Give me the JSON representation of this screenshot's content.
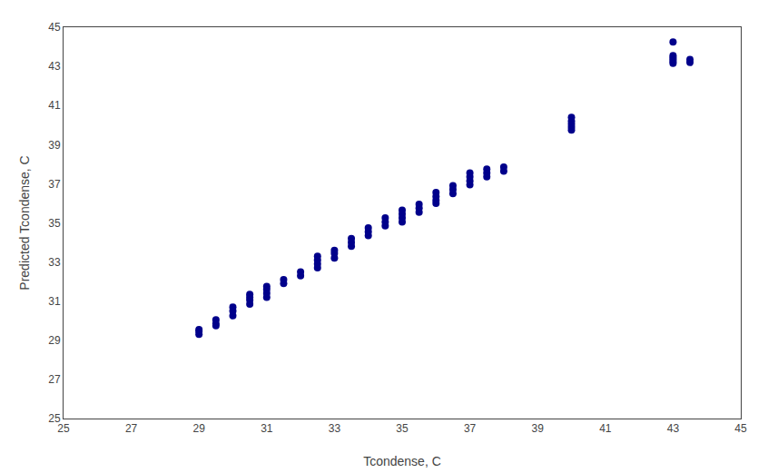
{
  "chart_data": {
    "type": "scatter",
    "xlabel": "Tcondense, C",
    "ylabel": "Predicted Tcondense, C",
    "x": [
      29.0,
      29.0,
      29.0,
      29.5,
      29.5,
      29.5,
      30.0,
      30.0,
      30.0,
      30.5,
      30.5,
      30.5,
      30.5,
      31.0,
      31.0,
      31.0,
      31.0,
      31.5,
      31.5,
      32.0,
      32.0,
      32.5,
      32.5,
      32.5,
      32.5,
      33.0,
      33.0,
      33.0,
      33.5,
      33.5,
      33.5,
      34.0,
      34.0,
      34.0,
      34.5,
      34.5,
      34.5,
      35.0,
      35.0,
      35.0,
      35.0,
      35.5,
      35.5,
      35.5,
      36.0,
      36.0,
      36.0,
      36.0,
      36.5,
      36.5,
      36.5,
      37.0,
      37.0,
      37.0,
      37.0,
      37.5,
      37.5,
      37.5,
      38.0,
      38.0,
      40.0,
      40.0,
      40.0,
      40.0,
      40.0,
      43.0,
      43.0,
      43.0,
      43.0,
      43.0,
      43.0,
      43.5,
      43.5
    ],
    "values": [
      29.3,
      29.45,
      29.55,
      29.75,
      29.85,
      30.05,
      30.25,
      30.5,
      30.7,
      30.85,
      31.05,
      31.2,
      31.35,
      31.2,
      31.4,
      31.6,
      31.75,
      31.9,
      32.1,
      32.3,
      32.5,
      32.7,
      32.9,
      33.1,
      33.3,
      33.2,
      33.45,
      33.6,
      33.8,
      34.0,
      34.2,
      34.35,
      34.55,
      34.75,
      34.85,
      35.05,
      35.25,
      35.05,
      35.25,
      35.45,
      35.65,
      35.55,
      35.75,
      35.95,
      36.0,
      36.15,
      36.35,
      36.55,
      36.5,
      36.7,
      36.9,
      36.95,
      37.15,
      37.35,
      37.55,
      37.35,
      37.55,
      37.75,
      37.65,
      37.85,
      39.75,
      39.9,
      40.05,
      40.2,
      40.4,
      43.15,
      43.25,
      43.35,
      43.45,
      43.55,
      44.25,
      43.2,
      43.35
    ],
    "color": "#00008B",
    "xlim": [
      25,
      45
    ],
    "ylim": [
      25,
      45
    ],
    "xticks": [
      25,
      27,
      29,
      31,
      33,
      35,
      37,
      39,
      41,
      43,
      45
    ],
    "yticks": [
      25,
      27,
      29,
      31,
      33,
      35,
      37,
      39,
      41,
      43,
      45
    ],
    "grid": false
  }
}
